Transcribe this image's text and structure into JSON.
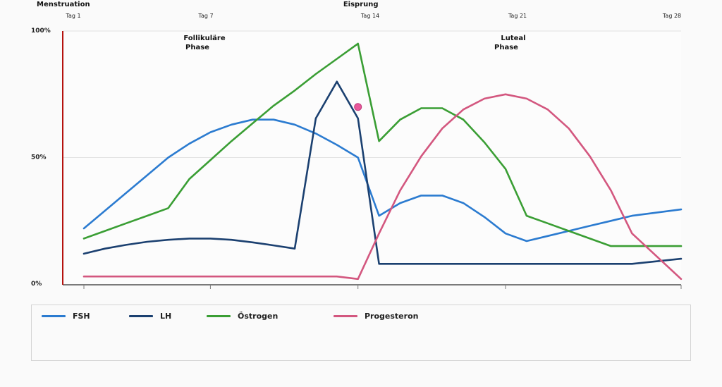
{
  "chart_data": {
    "type": "line",
    "title": "",
    "x_range": [
      0,
      28.5
    ],
    "y_range": [
      0,
      100
    ],
    "y_ticks": [
      {
        "value": 100,
        "label": "100%"
      },
      {
        "value": 50,
        "label": "50%"
      },
      {
        "value": 0,
        "label": "0%"
      }
    ],
    "top_labels": [
      {
        "day": 0.5,
        "label": "Menstruation"
      },
      {
        "day": 14,
        "label": "Eisprung"
      }
    ],
    "day_labels": [
      {
        "day": 1,
        "label": "Tag 1"
      },
      {
        "day": 7,
        "label": "Tag 7"
      },
      {
        "day": 14,
        "label": "Tag 14"
      },
      {
        "day": 21,
        "label": "Tag 21"
      },
      {
        "day": 28,
        "label": "Tag 28"
      }
    ],
    "x_axis_ticks": [
      1,
      7,
      14,
      21,
      28
    ],
    "phases": [
      {
        "line1": "Follikuläre",
        "line2": "Phase",
        "day": 7.6,
        "y": 95
      },
      {
        "line1": "Luteal",
        "line2": "Phase",
        "day": 21.6,
        "y": 95
      }
    ],
    "marker": {
      "day": 14,
      "value": 70,
      "color": "#e8589a"
    },
    "grid": true,
    "legend_position": "bottom",
    "series": [
      {
        "name": "FSH",
        "color": "#2b7bd0",
        "points": [
          [
            1,
            22
          ],
          [
            3,
            36
          ],
          [
            5,
            50
          ],
          [
            6,
            55.5
          ],
          [
            7,
            60
          ],
          [
            8,
            63
          ],
          [
            9,
            65
          ],
          [
            10,
            65
          ],
          [
            11,
            63
          ],
          [
            12,
            59.5
          ],
          [
            13,
            55
          ],
          [
            14,
            50
          ],
          [
            15,
            27
          ],
          [
            16,
            32
          ],
          [
            17,
            35
          ],
          [
            18,
            35
          ],
          [
            19,
            32
          ],
          [
            20,
            26.5
          ],
          [
            21,
            20
          ],
          [
            22,
            17
          ],
          [
            23,
            19
          ],
          [
            24,
            21
          ],
          [
            25,
            23
          ],
          [
            26,
            25
          ],
          [
            27,
            27
          ],
          [
            28,
            29.5
          ]
        ]
      },
      {
        "name": "LH",
        "color": "#1b4070",
        "points": [
          [
            1,
            12
          ],
          [
            2,
            14
          ],
          [
            3,
            15.5
          ],
          [
            4,
            16.7
          ],
          [
            5,
            17.5
          ],
          [
            6,
            18
          ],
          [
            7,
            18
          ],
          [
            8,
            17.5
          ],
          [
            9,
            16.5
          ],
          [
            10,
            15.3
          ],
          [
            11,
            14
          ],
          [
            12,
            65.5
          ],
          [
            13,
            80
          ],
          [
            14,
            65.5
          ],
          [
            15,
            8
          ],
          [
            16,
            8
          ],
          [
            17,
            8
          ],
          [
            18,
            8
          ],
          [
            19,
            8
          ],
          [
            20,
            8
          ],
          [
            21,
            8
          ],
          [
            22,
            8
          ],
          [
            23,
            8
          ],
          [
            24,
            8
          ],
          [
            25,
            8
          ],
          [
            26,
            8
          ],
          [
            27,
            8
          ],
          [
            28,
            10
          ]
        ]
      },
      {
        "name": "Östrogen",
        "color": "#3a9e34",
        "points": [
          [
            1,
            18
          ],
          [
            2,
            21
          ],
          [
            3,
            24
          ],
          [
            4,
            27
          ],
          [
            5,
            30
          ],
          [
            6,
            41.5
          ],
          [
            7,
            49
          ],
          [
            8,
            56.5
          ],
          [
            9,
            63.5
          ],
          [
            10,
            70.5
          ],
          [
            11,
            76.5
          ],
          [
            12,
            83
          ],
          [
            13,
            89
          ],
          [
            14,
            95
          ],
          [
            15,
            56.5
          ],
          [
            16,
            65
          ],
          [
            17,
            69.5
          ],
          [
            18,
            69.5
          ],
          [
            19,
            65
          ],
          [
            20,
            56
          ],
          [
            21,
            45.5
          ],
          [
            22,
            27
          ],
          [
            23,
            24
          ],
          [
            24,
            21
          ],
          [
            25,
            18
          ],
          [
            26,
            15
          ],
          [
            27,
            15
          ],
          [
            28,
            15
          ]
        ]
      },
      {
        "name": "Progesteron",
        "color": "#d3577f",
        "points": [
          [
            1,
            3
          ],
          [
            2,
            3
          ],
          [
            3,
            3
          ],
          [
            4,
            3
          ],
          [
            5,
            3
          ],
          [
            6,
            3
          ],
          [
            7,
            3
          ],
          [
            8,
            3
          ],
          [
            9,
            3
          ],
          [
            10,
            3
          ],
          [
            11,
            3
          ],
          [
            12,
            3
          ],
          [
            13,
            3
          ],
          [
            14,
            2
          ],
          [
            15,
            20
          ],
          [
            16,
            37
          ],
          [
            17,
            50.5
          ],
          [
            18,
            61.5
          ],
          [
            19,
            69
          ],
          [
            20,
            73.3
          ],
          [
            21,
            75
          ],
          [
            22,
            73.3
          ],
          [
            23,
            69
          ],
          [
            24,
            61.5
          ],
          [
            25,
            50.5
          ],
          [
            26,
            37
          ],
          [
            27,
            20
          ],
          [
            28,
            2
          ]
        ]
      }
    ]
  }
}
